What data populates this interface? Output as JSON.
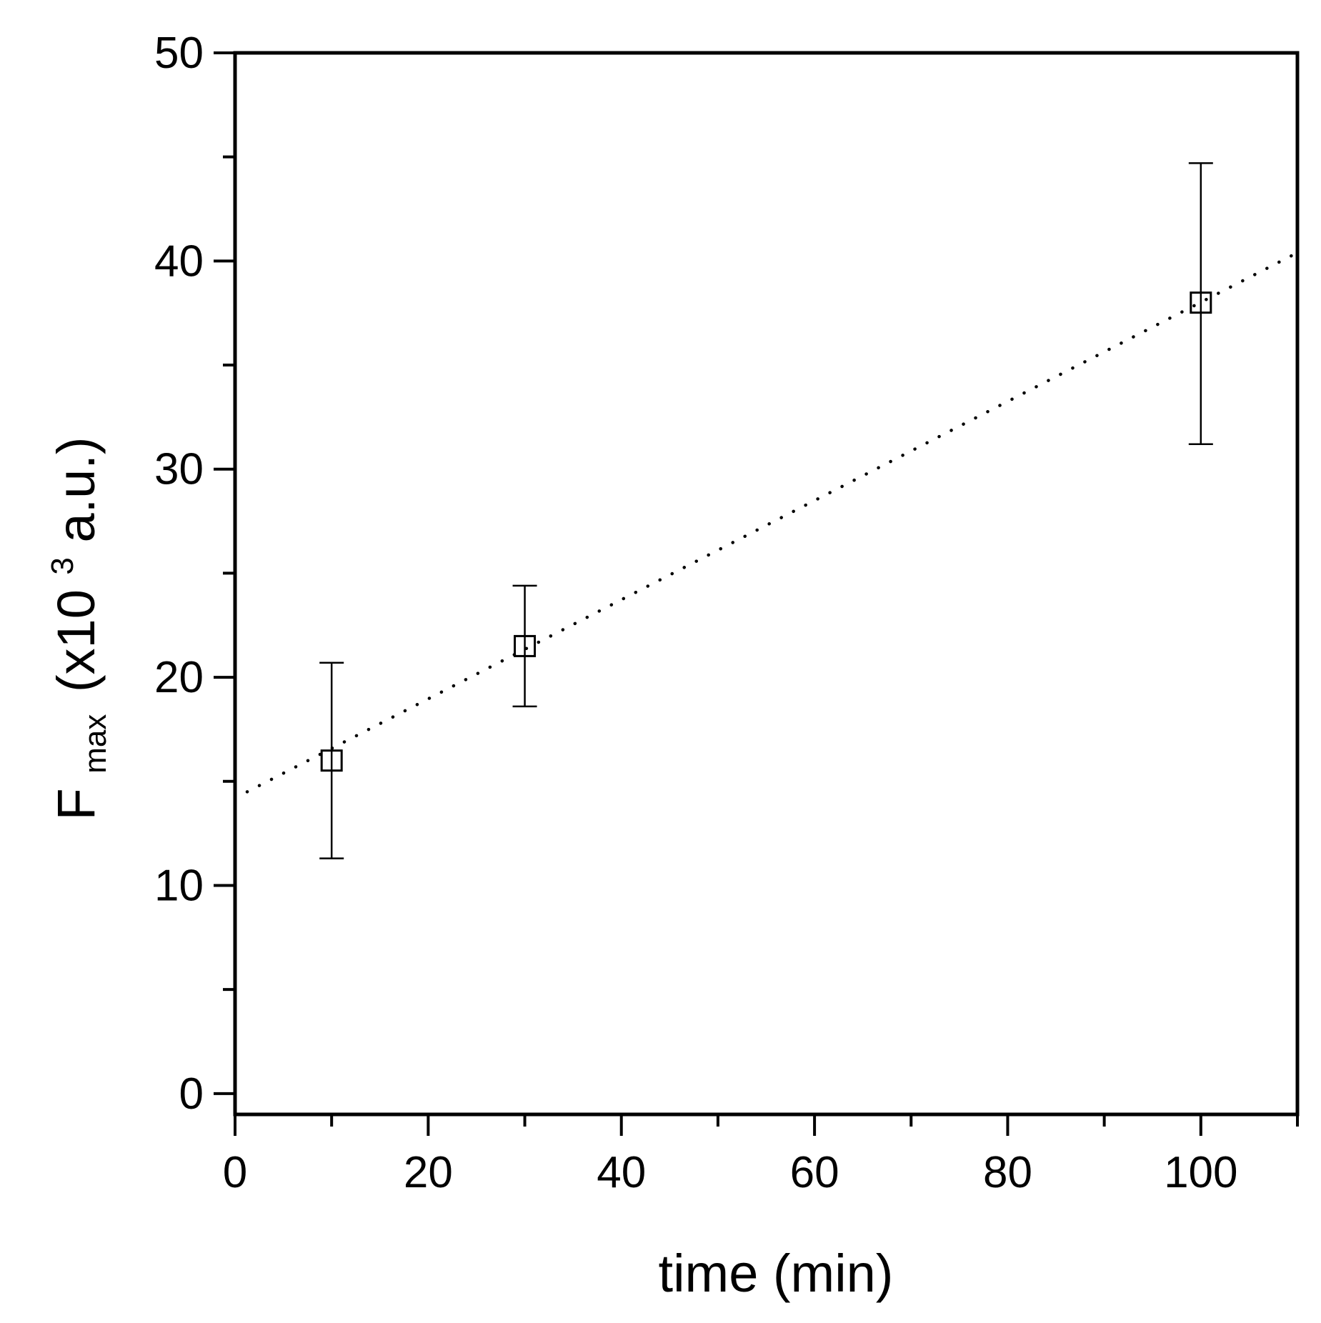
{
  "chart_data": {
    "type": "scatter",
    "xlabel": "time (min)",
    "ylabel": {
      "main": "F",
      "subscript": "max",
      "unit_prefix": "(x10",
      "superscript": "3",
      "unit_suffix": " a.u.)"
    },
    "xlim": [
      0,
      110
    ],
    "ylim": [
      -1,
      50
    ],
    "x_major_ticks": [
      0,
      20,
      40,
      60,
      80,
      100
    ],
    "x_minor_ticks": [
      10,
      30,
      50,
      70,
      90,
      110
    ],
    "y_major_ticks": [
      0,
      10,
      20,
      30,
      40,
      50
    ],
    "y_minor_ticks": [
      5,
      15,
      25,
      35,
      45
    ],
    "grid": false,
    "legend": "none",
    "series": [
      {
        "marker": "open-square",
        "color": "#000000",
        "points": [
          {
            "x": 10,
            "y": 16.0,
            "y_err_low": 11.3,
            "y_err_high": 20.7
          },
          {
            "x": 30,
            "y": 21.5,
            "y_err_low": 18.6,
            "y_err_high": 24.4
          },
          {
            "x": 100,
            "y": 38.0,
            "y_err_low": 31.2,
            "y_err_high": 44.7
          }
        ]
      }
    ],
    "fit_line": {
      "style": "dotted",
      "color": "#000000",
      "x": [
        0,
        110
      ],
      "y": [
        14.2,
        40.4
      ]
    }
  }
}
